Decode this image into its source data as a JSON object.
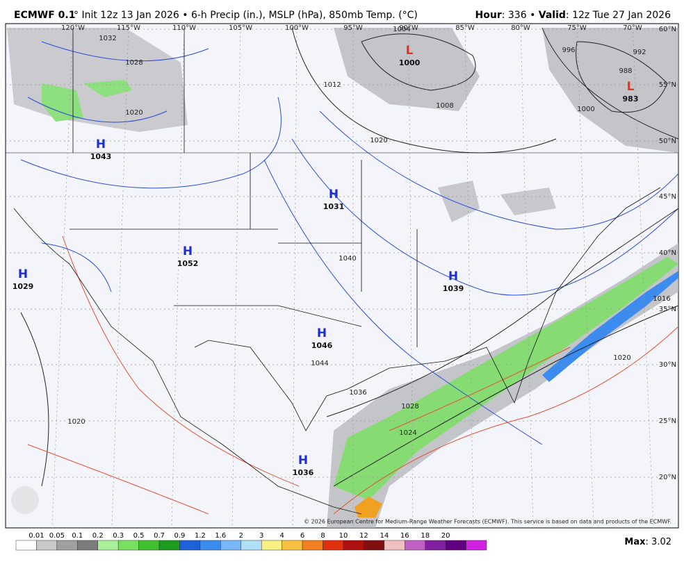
{
  "header": {
    "model": "ECMWF 0.1",
    "subtitle": "° Init 12z 13 Jan 2026 • 6-h Precip (in.), MSLP (hPa), 850mb Temp. (°C)",
    "right": [
      {
        "text": "Hour",
        "bold": true
      },
      {
        "text": ": 336 • ",
        "bold": false
      },
      {
        "text": "Valid",
        "bold": true
      },
      {
        "text": ": 12z Tue 27 Jan 2026",
        "bold": false
      }
    ]
  },
  "map": {
    "longitudes": [
      "120°W",
      "115°W",
      "110°W",
      "105°W",
      "100°W",
      "95°W",
      "90°W",
      "85°W",
      "80°W",
      "75°W",
      "70°W"
    ],
    "latitudes": [
      "60°N",
      "55°N",
      "50°N",
      "45°N",
      "40°N",
      "35°N",
      "30°N",
      "25°N",
      "20°N"
    ],
    "centers": [
      {
        "letter": "H",
        "value": "1043",
        "color": "#1f2fd6"
      },
      {
        "letter": "H",
        "value": "1031",
        "color": "#1f2fd6"
      },
      {
        "letter": "H",
        "value": "1052",
        "color": "#1f2fd6"
      },
      {
        "letter": "H",
        "value": "1029",
        "color": "#1f2fd6"
      },
      {
        "letter": "H",
        "value": "1039",
        "color": "#1f2fd6"
      },
      {
        "letter": "H",
        "value": "1046",
        "color": "#1f2fd6"
      },
      {
        "letter": "H",
        "value": "1036",
        "color": "#1f2fd6"
      },
      {
        "letter": "L",
        "value": "1000",
        "color": "#e8321e"
      },
      {
        "letter": "L",
        "value": "983",
        "color": "#e8321e"
      }
    ],
    "isobar_labels": [
      "1032",
      "1028",
      "1020",
      "1012",
      "1008",
      "1004",
      "996",
      "992",
      "988",
      "1000",
      "1020",
      "1044",
      "1036",
      "1028",
      "1024",
      "1020",
      "1016",
      "1040",
      "1020"
    ],
    "copyright": "© 2026 European Centre for Medium-Range Weather Forecasts (ECMWF). This service is based on data and products of the ECMWF."
  },
  "colorbar": {
    "labels": [
      0.01,
      0.05,
      0.1,
      0.2,
      0.3,
      0.5,
      0.7,
      0.9,
      1.2,
      1.6,
      2,
      3,
      4,
      6,
      8,
      10,
      12,
      14,
      16,
      18,
      20
    ],
    "colors": [
      "#ffffff",
      "#c8c8c8",
      "#a0a0a0",
      "#7c7c7c",
      "#a8f09a",
      "#78e060",
      "#40c030",
      "#1e9a1e",
      "#1e60d8",
      "#3c8cf0",
      "#78b8f8",
      "#b0e0f8",
      "#f8f080",
      "#f8c040",
      "#f08020",
      "#e03010",
      "#b01010",
      "#801010",
      "#f0c0c0",
      "#c060c0",
      "#8020a0",
      "#600080",
      "#d020e0"
    ],
    "max_label": "Max",
    "max_value": ": 3.02"
  }
}
